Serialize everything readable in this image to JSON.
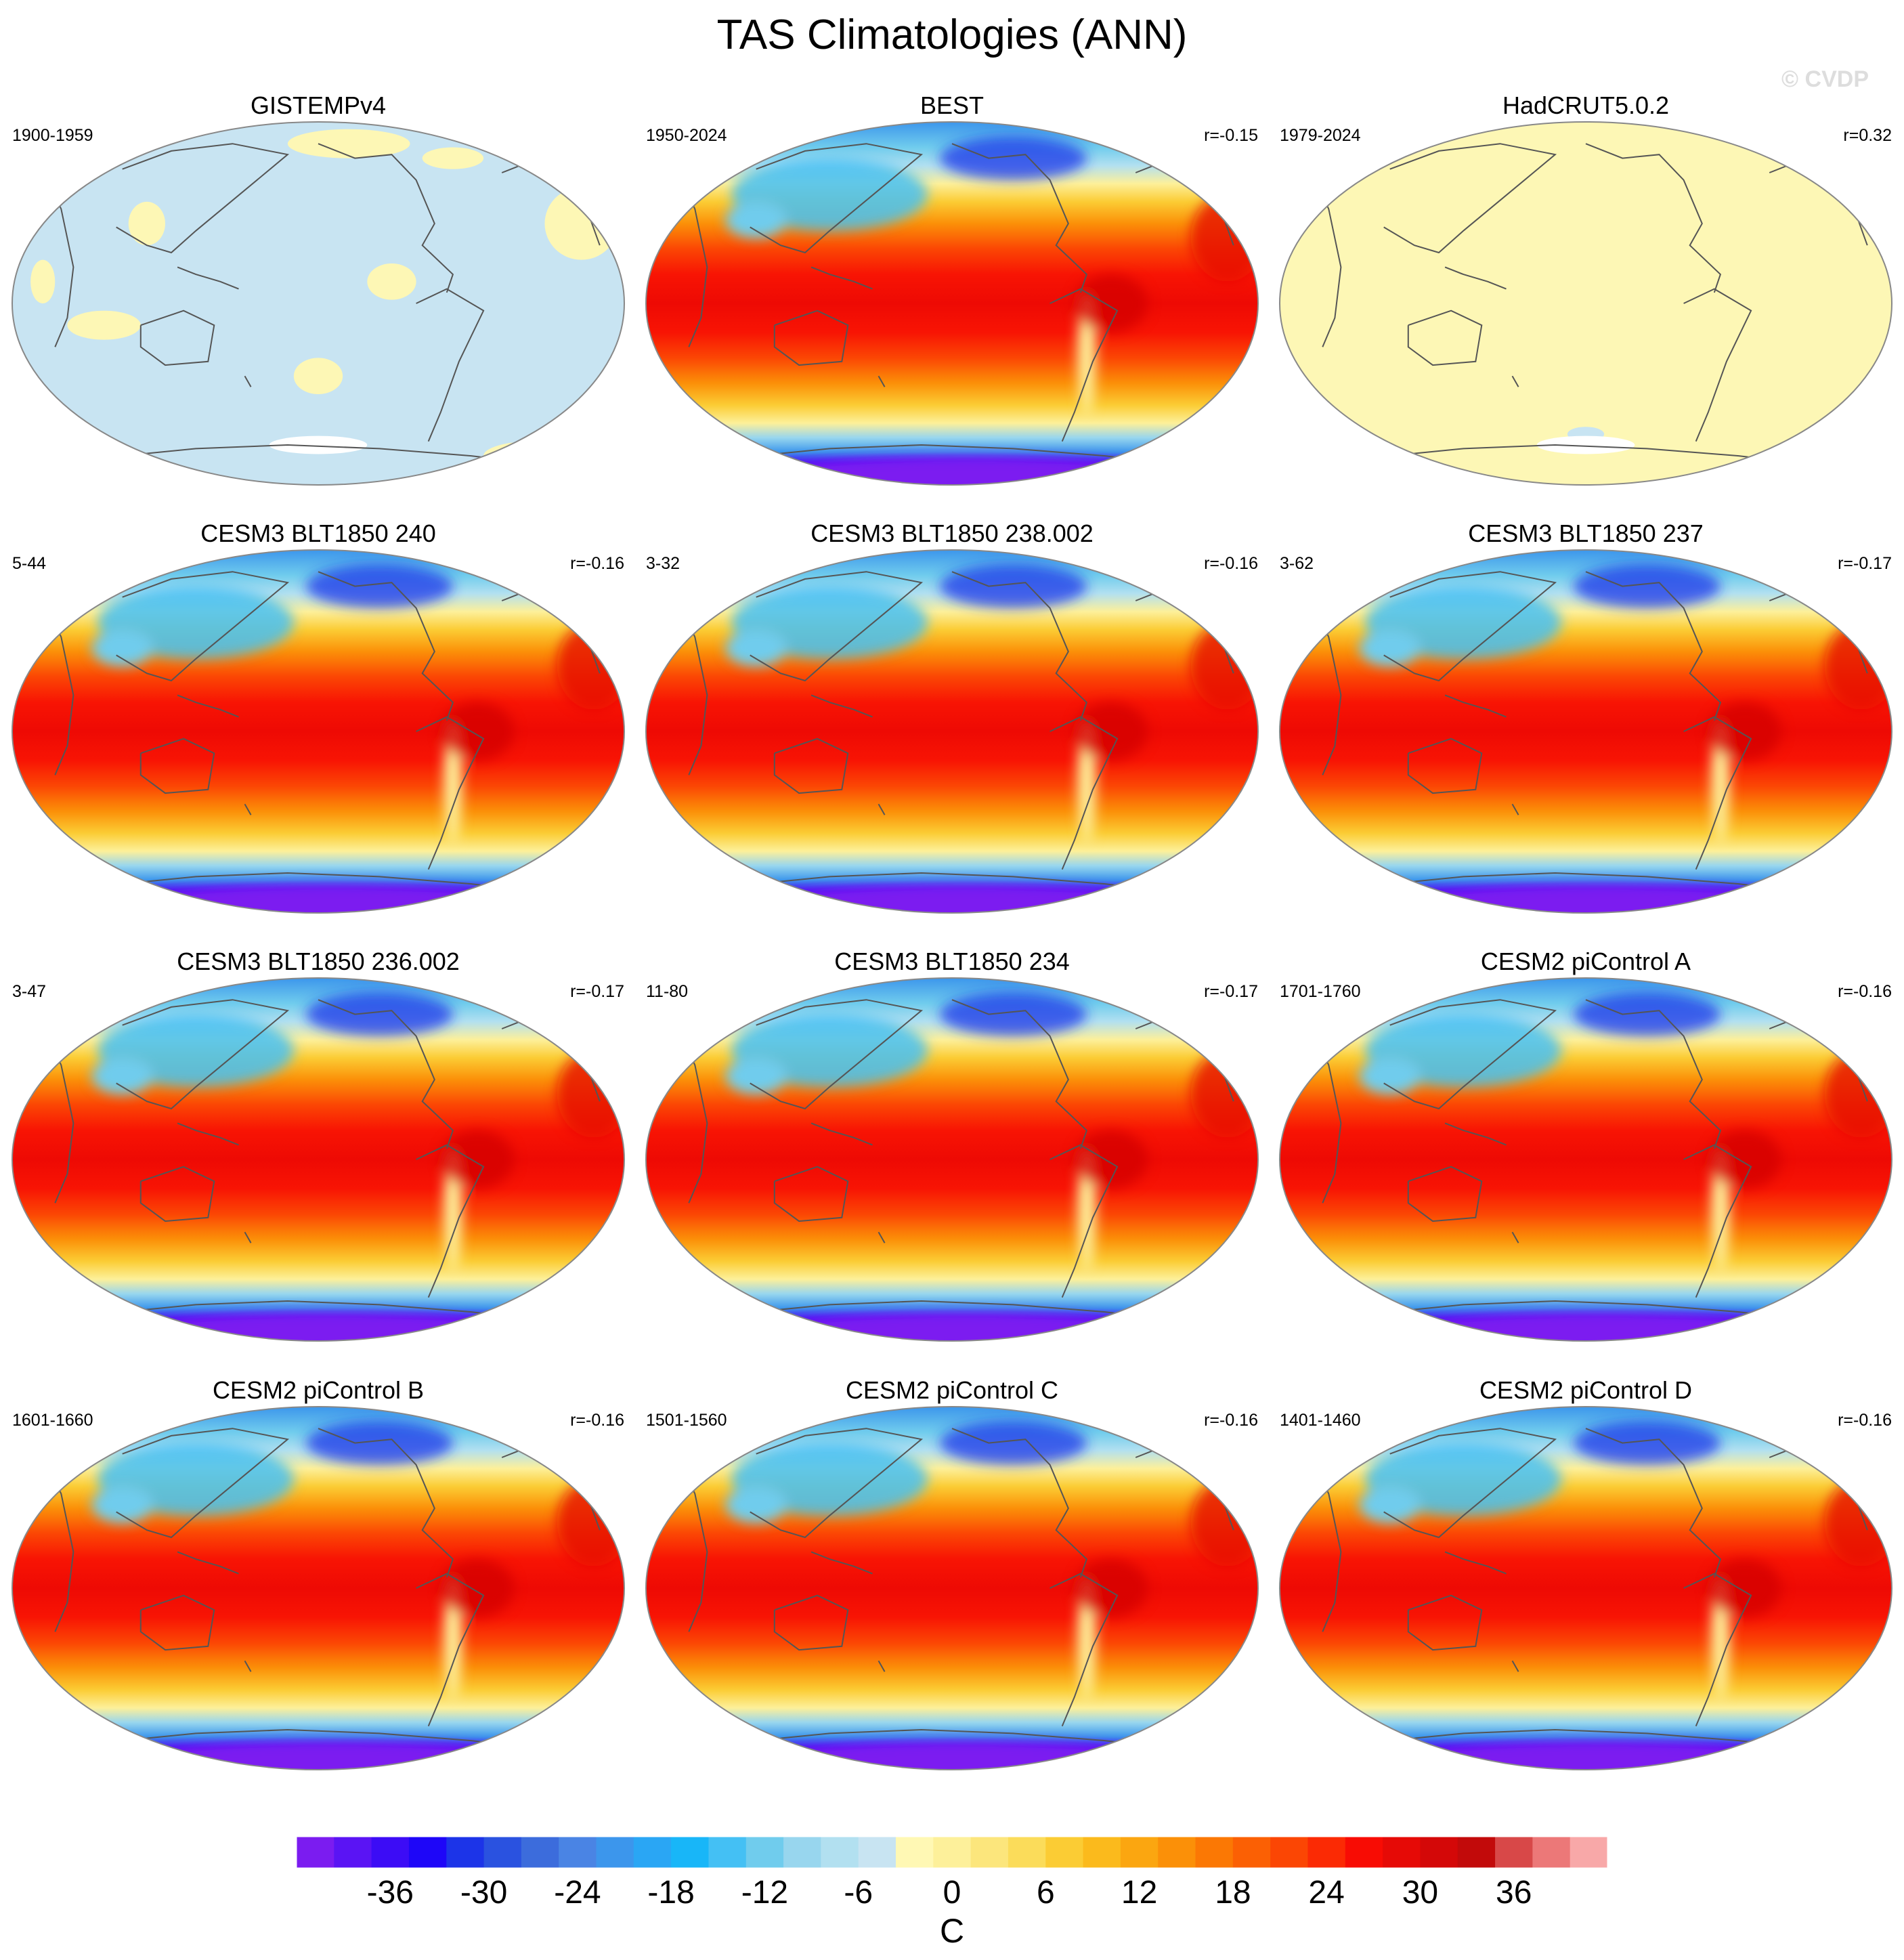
{
  "title": "TAS Climatologies (ANN)",
  "watermark": "© CVDP",
  "colors": {
    "map_low": "#c8e4f2",
    "map_high": "#fdf7b5",
    "ocean_outline": "#888888",
    "coast": "#555555"
  },
  "chart_data": {
    "type": "heatmap",
    "projection": "Robinson (Pacific-centered)",
    "panels": [
      {
        "name": "GISTEMPv4",
        "period": "1900-1959",
        "r": "",
        "style": "binary_low"
      },
      {
        "name": "BEST",
        "period": "1950-2024",
        "r": "r=-0.15",
        "style": "full"
      },
      {
        "name": "HadCRUT5.0.2",
        "period": "1979-2024",
        "r": "r=0.32",
        "style": "binary_high"
      },
      {
        "name": "CESM3 BLT1850 240",
        "period": "5-44",
        "r": "r=-0.16",
        "style": "full"
      },
      {
        "name": "CESM3 BLT1850 238.002",
        "period": "3-32",
        "r": "r=-0.16",
        "style": "full"
      },
      {
        "name": "CESM3 BLT1850 237",
        "period": "3-62",
        "r": "r=-0.17",
        "style": "full"
      },
      {
        "name": "CESM3 BLT1850 236.002",
        "period": "3-47",
        "r": "r=-0.17",
        "style": "full"
      },
      {
        "name": "CESM3 BLT1850 234",
        "period": "11-80",
        "r": "r=-0.17",
        "style": "full"
      },
      {
        "name": "CESM2 piControl A",
        "period": "1701-1760",
        "r": "r=-0.16",
        "style": "full"
      },
      {
        "name": "CESM2 piControl B",
        "period": "1601-1660",
        "r": "r=-0.16",
        "style": "full"
      },
      {
        "name": "CESM2 piControl C",
        "period": "1501-1560",
        "r": "r=-0.16",
        "style": "full"
      },
      {
        "name": "CESM2 piControl D",
        "period": "1401-1460",
        "r": "r=-0.16",
        "style": "full"
      }
    ],
    "colorbar": {
      "label": "C",
      "min": -42,
      "max": 42,
      "step": 3,
      "tick_labels": [
        "-36",
        "-30",
        "-24",
        "-18",
        "-12",
        "-6",
        "0",
        "6",
        "12",
        "18",
        "24",
        "30",
        "36"
      ],
      "colors": [
        "#7b1cf0",
        "#5a14f4",
        "#3c0cf6",
        "#1e06f8",
        "#1c34e8",
        "#2a52e0",
        "#3c6cdc",
        "#4a84e4",
        "#3c96ec",
        "#2aa6f4",
        "#18b6f8",
        "#44c0f4",
        "#70cced",
        "#98d6ee",
        "#b2e0f0",
        "#c8e4f2",
        "#fff8b4",
        "#fdf09a",
        "#fce67c",
        "#fbdc5a",
        "#fbcc34",
        "#fbba1c",
        "#fba610",
        "#fb9008",
        "#fb7804",
        "#fb6004",
        "#fb4604",
        "#fb2a04",
        "#f80c04",
        "#e60a06",
        "#d40808",
        "#c20a0a",
        "#d84848",
        "#ec7878",
        "#f8a8a8"
      ]
    }
  }
}
